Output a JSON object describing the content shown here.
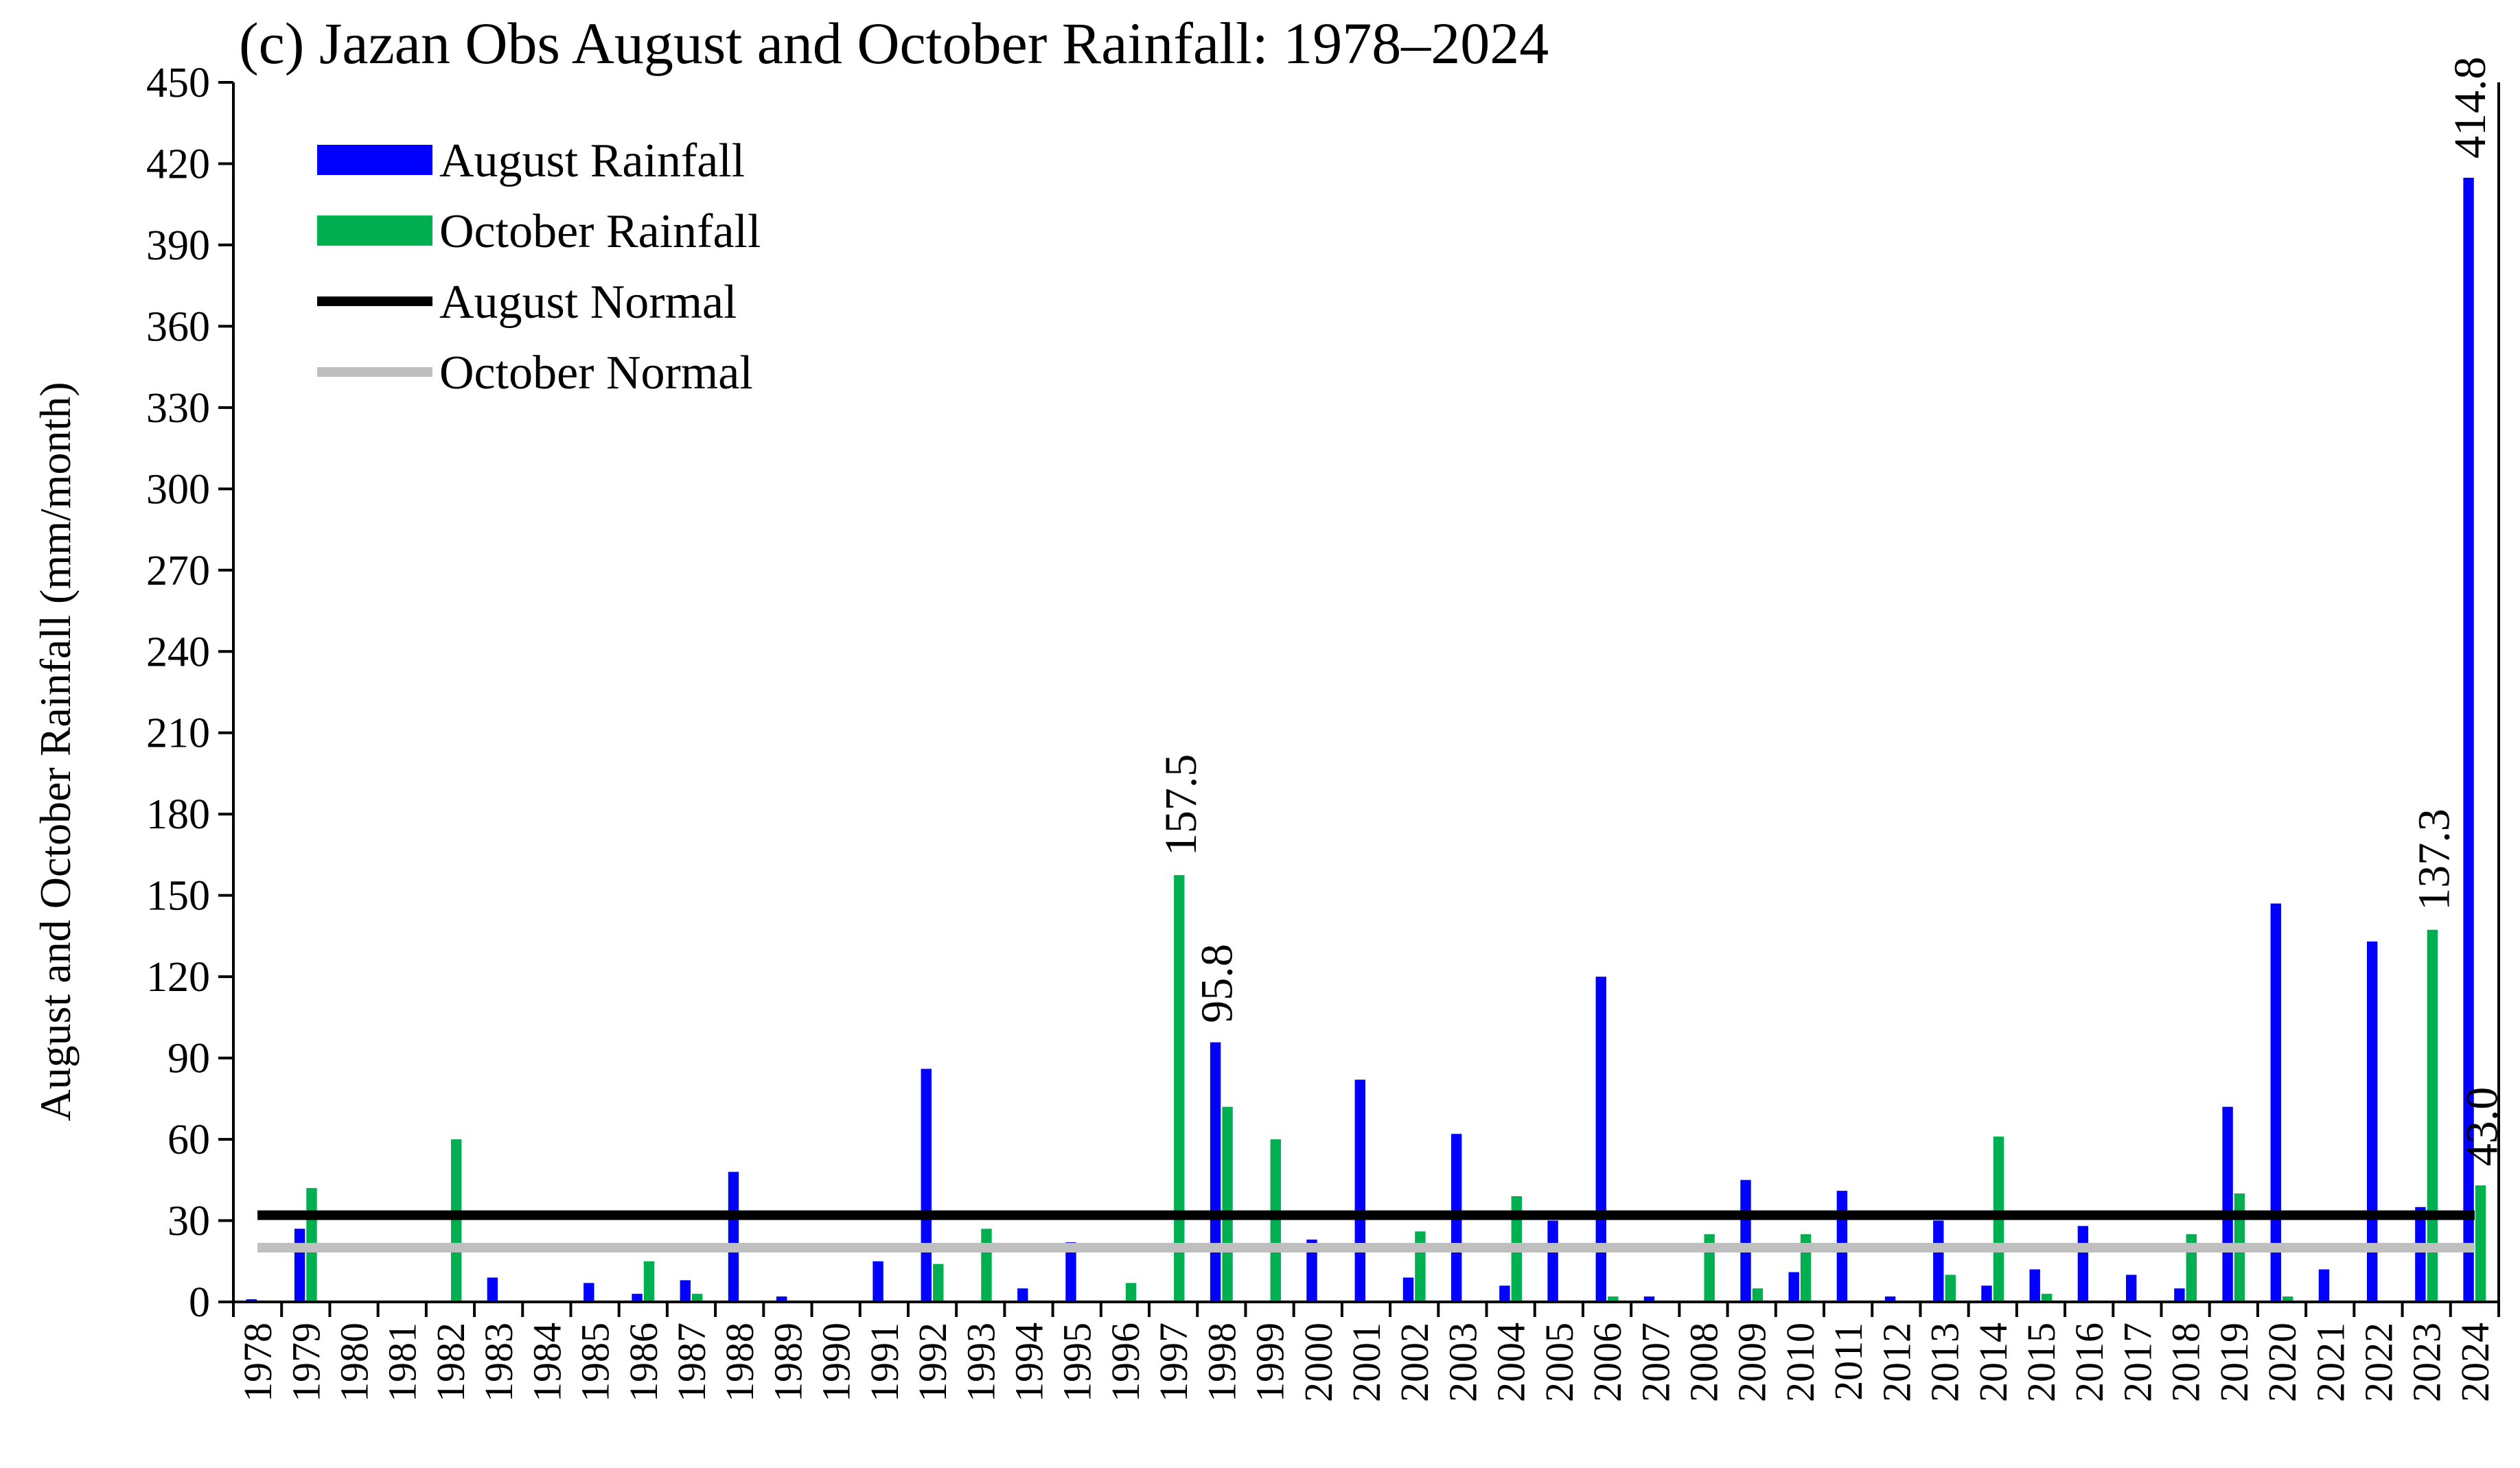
{
  "chart_data": {
    "type": "bar",
    "title": "(c) Jazan Obs August and October Rainfall: 1978–2024",
    "xlabel": "",
    "ylabel": "August and October Rainfall (mm/month)",
    "ylim": [
      0,
      450
    ],
    "yticks": [
      "0",
      "30",
      "60",
      "90",
      "120",
      "150",
      "180",
      "210",
      "240",
      "270",
      "300",
      "330",
      "360",
      "390",
      "420",
      "450"
    ],
    "grid": false,
    "legend_position": "top-left",
    "categories": [
      "1978",
      "1979",
      "1980",
      "1981",
      "1982",
      "1983",
      "1984",
      "1985",
      "1986",
      "1987",
      "1988",
      "1989",
      "1990",
      "1991",
      "1992",
      "1993",
      "1994",
      "1995",
      "1996",
      "1997",
      "1998",
      "1999",
      "2000",
      "2001",
      "2002",
      "2003",
      "2004",
      "2005",
      "2006",
      "2007",
      "2008",
      "2009",
      "2010",
      "2011",
      "2012",
      "2013",
      "2014",
      "2015",
      "2016",
      "2017",
      "2018",
      "2019",
      "2020",
      "2021",
      "2022",
      "2023",
      "2024"
    ],
    "series": [
      {
        "name": "August Rainfall",
        "color": "#0000ff",
        "values": [
          1,
          27,
          0,
          0,
          0,
          9,
          0,
          7,
          3,
          8,
          48,
          2,
          0,
          15,
          86,
          0,
          5,
          22,
          0,
          0,
          95.8,
          0,
          23,
          82,
          9,
          62,
          6,
          30,
          120,
          2,
          0,
          45,
          11,
          41,
          2,
          30,
          6,
          12,
          28,
          10,
          5,
          72,
          147,
          12,
          133,
          35,
          414.8
        ]
      },
      {
        "name": "October Rainfall",
        "color": "#00b050",
        "values": [
          0,
          42,
          0,
          0,
          60,
          0,
          0,
          0,
          15,
          3,
          0,
          0,
          0,
          0,
          14,
          27,
          0,
          0,
          7,
          157.5,
          72,
          60,
          0,
          0,
          26,
          0,
          39,
          0,
          2,
          0,
          25,
          5,
          25,
          0,
          0,
          10,
          61,
          3,
          0,
          0,
          25,
          40,
          2,
          0,
          0,
          137.3,
          43.0
        ]
      }
    ],
    "normals": [
      {
        "name": "August Normal",
        "color": "#000000",
        "value": 32
      },
      {
        "name": "October Normal",
        "color": "#bfbfbf",
        "value": 20
      }
    ],
    "annotations": [
      {
        "text": "157.5",
        "year": "1997",
        "series": "October Rainfall"
      },
      {
        "text": "95.8",
        "year": "1998",
        "series": "August Rainfall"
      },
      {
        "text": "137.3",
        "year": "2023",
        "series": "October Rainfall"
      },
      {
        "text": "414.8",
        "year": "2024",
        "series": "August Rainfall"
      },
      {
        "text": "43.0",
        "year": "2024",
        "series": "October Rainfall"
      }
    ]
  }
}
